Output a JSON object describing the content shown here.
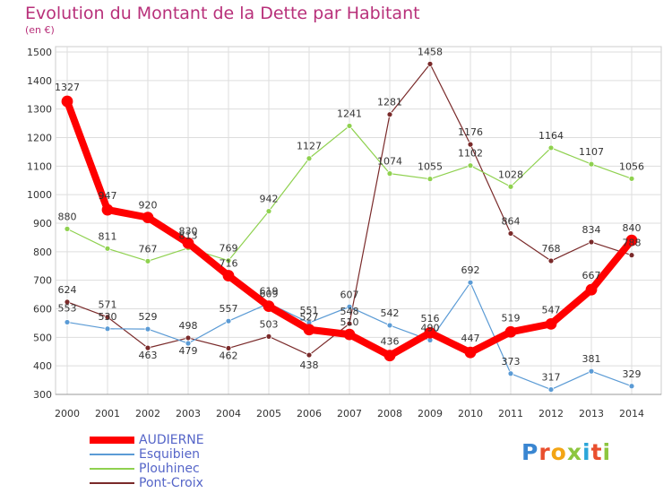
{
  "chart_data": {
    "type": "line",
    "title": "Evolution du Montant de la Dette par Habitant",
    "subtitle": "(en €)",
    "x": [
      "2000",
      "2001",
      "2002",
      "2003",
      "2004",
      "2005",
      "2006",
      "2007",
      "2008",
      "2009",
      "2010",
      "2011",
      "2012",
      "2013",
      "2014"
    ],
    "ylim": [
      300,
      1500
    ],
    "yticks": [
      300,
      400,
      500,
      600,
      700,
      800,
      900,
      1000,
      1100,
      1200,
      1300,
      1400,
      1500
    ],
    "grid": true,
    "legend_position": "bottom-left",
    "series": [
      {
        "name": "AUDIERNE",
        "color": "#ff0000",
        "values": [
          1327,
          947,
          920,
          830,
          716,
          609,
          527,
          510,
          436,
          516,
          447,
          519,
          547,
          667,
          840
        ]
      },
      {
        "name": "Esquibien",
        "color": "#5b9bd5",
        "values": [
          553,
          530,
          529,
          479,
          557,
          619,
          551,
          607,
          542,
          490,
          692,
          373,
          317,
          381,
          329
        ]
      },
      {
        "name": "Plouhinec",
        "color": "#8fd14f",
        "values": [
          880,
          811,
          767,
          813,
          769,
          942,
          1127,
          1241,
          1074,
          1055,
          1102,
          1028,
          1164,
          1107,
          1056
        ]
      },
      {
        "name": "Pont-Croix",
        "color": "#7a2a2a",
        "values": [
          624,
          571,
          463,
          498,
          462,
          503,
          438,
          548,
          1281,
          1458,
          1176,
          864,
          768,
          834,
          788
        ]
      }
    ]
  },
  "logo": {
    "text": "Proxiti"
  }
}
